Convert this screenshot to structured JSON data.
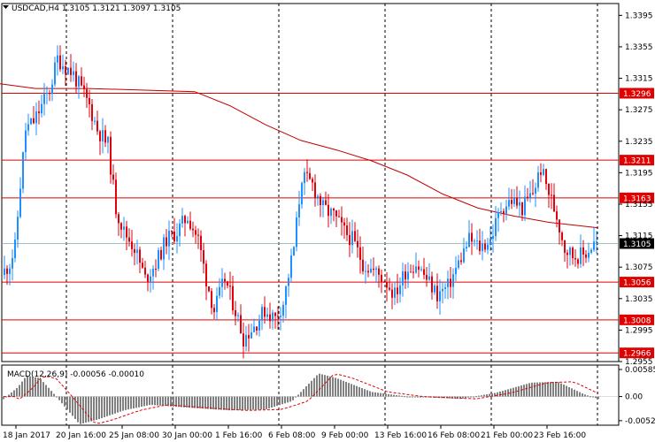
{
  "chart_header": {
    "symbol": "USDCAD,H4",
    "ohlc": "1.3105 1.3121 1.3097 1.3105"
  },
  "macd_header": "MACD(12,26,9) -0.00056 -0.00010",
  "colors": {
    "bull": "#1e90ff",
    "bear": "#e0000e",
    "ma": "#c00000",
    "level": "#e00000",
    "grid": "#000000",
    "histogram": "#808080",
    "signal": "#e00000",
    "current_tag": "#000000"
  },
  "chart_data": {
    "type": "candlestick",
    "price_axis": {
      "ticks": [
        "1.3395",
        "1.3355",
        "1.3315",
        "1.3275",
        "1.3235",
        "1.3195",
        "1.3155",
        "1.3115",
        "1.3075",
        "1.3035",
        "1.2995",
        "1.2955"
      ],
      "range": [
        1.2955,
        1.341
      ]
    },
    "time_axis": {
      "ticks": [
        "18 Jan 2017",
        "20 Jan 16:00",
        "25 Jan 08:00",
        "30 Jan 00:00",
        "1 Feb 16:00",
        "6 Feb 08:00",
        "9 Feb 00:00",
        "13 Feb 16:00",
        "16 Feb 08:00",
        "21 Feb 00:00",
        "23 Feb 16:00"
      ]
    },
    "horizontal_levels": [
      {
        "label": "1.3296",
        "value": 1.3296
      },
      {
        "label": "1.3211",
        "value": 1.3211
      },
      {
        "label": "1.3163",
        "value": 1.3163
      },
      {
        "label": "1.3056",
        "value": 1.3056
      },
      {
        "label": "1.3008",
        "value": 1.3008
      },
      {
        "label": "1.2966",
        "value": 1.2966
      }
    ],
    "current_price": {
      "label": "1.3105",
      "value": 1.3105
    },
    "macd_axis": {
      "ticks": [
        "0.00585",
        "0.00",
        "-0.00522"
      ],
      "range": [
        -0.0062,
        0.0068
      ]
    }
  }
}
